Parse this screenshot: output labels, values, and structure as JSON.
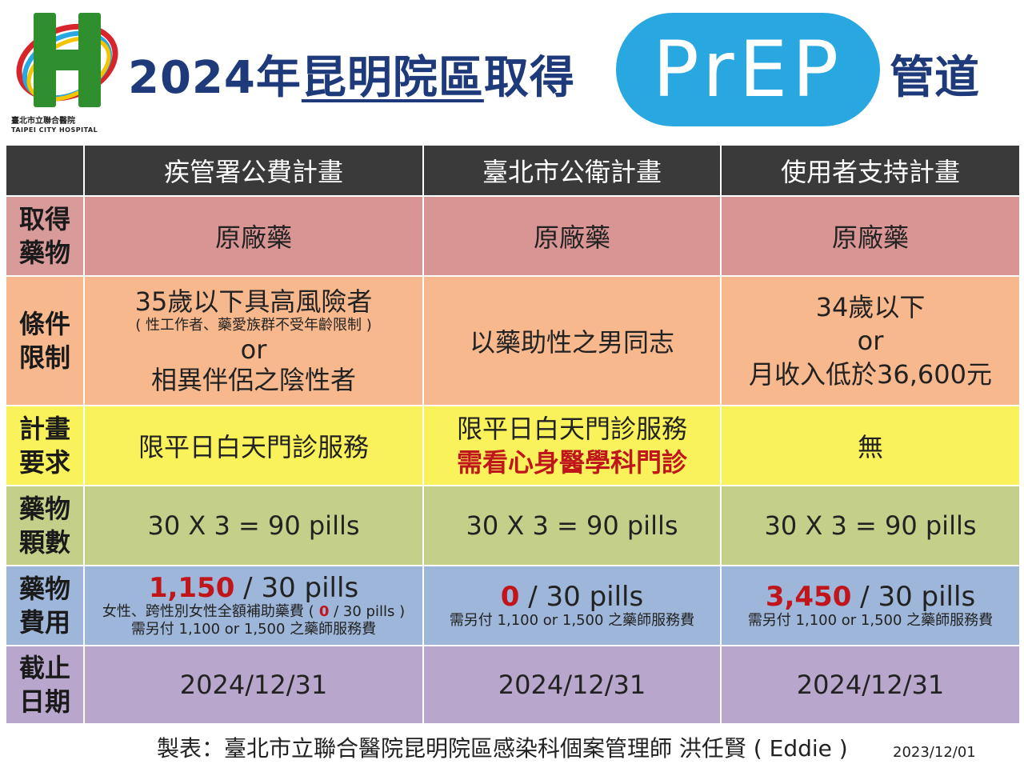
{
  "header": {
    "logo_name_zh": "臺北市立聯合醫院",
    "logo_name_en": "TAIPEI CITY HOSPITAL",
    "title_year": "2024年",
    "title_ul": "昆明院區",
    "title_rest": "取得",
    "badge": "PrEP",
    "title_end": "管道"
  },
  "table": {
    "columns": [
      "疾管署公費計畫",
      "臺北市公衛計畫",
      "使用者支持計畫"
    ],
    "rows": {
      "drug": {
        "label1": "取得",
        "label2": "藥物",
        "c1": "原廠藥",
        "c2": "原廠藥",
        "c3": "原廠藥"
      },
      "cond": {
        "label1": "條件",
        "label2": "限制",
        "c1_line1": "35歲以下具高風險者",
        "c1_note": "( 性工作者、藥愛族群不受年齡限制 )",
        "c1_or": "or",
        "c1_line2": "相異伴侶之陰性者",
        "c2": "以藥助性之男同志",
        "c3_line1": "34歲以下",
        "c3_or": "or",
        "c3_line2": "月收入低於36,600元"
      },
      "req": {
        "label1": "計畫",
        "label2": "要求",
        "c1": "限平日白天門診服務",
        "c2_line1": "限平日白天門診服務",
        "c2_line2": "需看心身醫學科門診",
        "c3": "無"
      },
      "count": {
        "label1": "藥物",
        "label2": "顆數",
        "c1": "30 X 3 = 90 pills",
        "c2": "30 X 3 = 90 pills",
        "c3": "30 X 3 = 90 pills"
      },
      "cost": {
        "label1": "藥物",
        "label2": "費用",
        "c1_price": "1,150",
        "c1_unit": " / 30 pills",
        "c1_note_a": "女性、跨性別女性全額補助藥費 (",
        "c1_note_zero": " 0",
        "c1_note_b": " / 30 pills )",
        "c1_note2": "需另付 1,100 or 1,500 之藥師服務費",
        "c2_price": "0",
        "c2_unit": " / 30 pills",
        "c2_note": "需另付 1,100 or 1,500 之藥師服務費",
        "c3_price": "3,450",
        "c3_unit": " / 30 pills",
        "c3_note": "需另付 1,100 or 1,500 之藥師服務費"
      },
      "deadline": {
        "label1": "截止",
        "label2": "日期",
        "c1": "2024/12/31",
        "c2": "2024/12/31",
        "c3": "2024/12/31"
      }
    }
  },
  "footer": {
    "credit": "製表：臺北市立聯合醫院昆明院區感染科個案管理師  洪任賢 ( Eddie )",
    "date": "2023/12/01"
  },
  "colors": {
    "navy": "#1f3a7a",
    "badge": "#29a7e1",
    "red": "#c0161b"
  }
}
